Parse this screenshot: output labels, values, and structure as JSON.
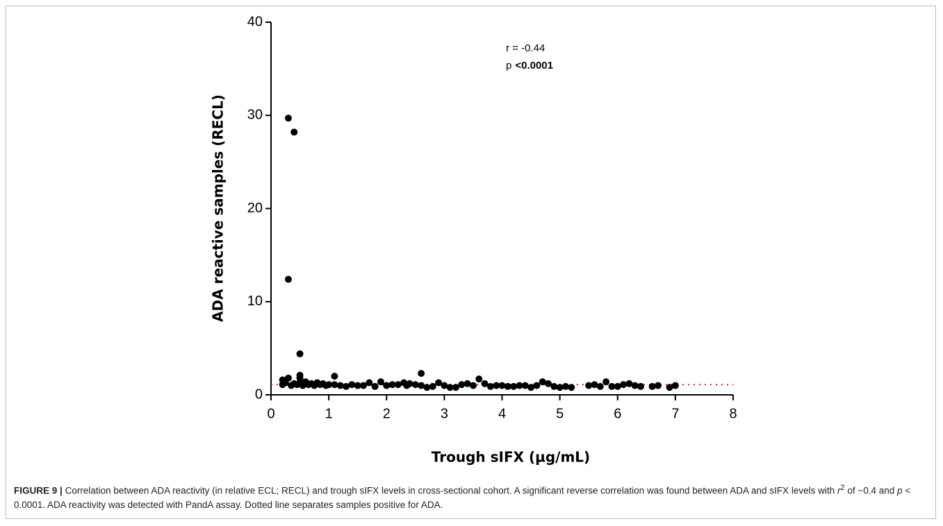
{
  "chart_data": {
    "type": "scatter",
    "x_label": "Trough sIFX (µg/mL)",
    "y_label": "ADA reactive samples (RECL)",
    "annotation_r": "r  = -0.44",
    "annotation_p": "p",
    "annotation_p_value": "<0.0001",
    "xlim": [
      0,
      8
    ],
    "xticks": [
      0,
      1,
      2,
      3,
      4,
      5,
      6,
      7,
      8
    ],
    "ylim": [
      0,
      40
    ],
    "yticks": [
      0,
      10,
      20,
      30,
      40
    ],
    "color": "#000000",
    "threshold": 1.1,
    "threshold_color": "#e02020",
    "x": [
      0.2,
      0.2,
      0.25,
      0.3,
      0.3,
      0.3,
      0.35,
      0.4,
      0.4,
      0.45,
      0.5,
      0.5,
      0.5,
      0.5,
      0.55,
      0.6,
      0.65,
      0.7,
      0.75,
      0.8,
      0.85,
      0.9,
      0.95,
      1.0,
      1.1,
      1.1,
      1.2,
      1.3,
      1.4,
      1.5,
      1.6,
      1.7,
      1.8,
      1.9,
      2.0,
      2.1,
      2.2,
      2.3,
      2.35,
      2.4,
      2.5,
      2.6,
      2.6,
      2.7,
      2.8,
      2.9,
      3.0,
      3.1,
      3.2,
      3.3,
      3.4,
      3.5,
      3.6,
      3.7,
      3.8,
      3.9,
      4.0,
      4.1,
      4.2,
      4.3,
      4.4,
      4.5,
      4.6,
      4.7,
      4.8,
      4.9,
      5.0,
      5.1,
      5.2,
      5.5,
      5.6,
      5.7,
      5.8,
      5.9,
      6.0,
      6.1,
      6.2,
      6.3,
      6.4,
      6.6,
      6.7,
      6.9,
      7.0
    ],
    "values": [
      1.6,
      1.1,
      1.3,
      29.7,
      12.4,
      1.8,
      1.0,
      28.2,
      1.2,
      1.1,
      4.4,
      2.1,
      1.8,
      1.3,
      1.0,
      1.4,
      1.1,
      1.2,
      1.0,
      1.3,
      1.1,
      1.2,
      1.0,
      1.1,
      2.0,
      1.1,
      1.0,
      0.9,
      1.1,
      1.0,
      1.0,
      1.3,
      0.9,
      1.4,
      1.0,
      1.1,
      1.1,
      1.3,
      1.0,
      1.2,
      1.1,
      2.3,
      1.0,
      0.8,
      0.9,
      1.3,
      1.0,
      0.8,
      0.8,
      1.1,
      1.2,
      1.0,
      1.7,
      1.2,
      0.9,
      1.0,
      1.0,
      0.9,
      0.9,
      1.0,
      1.0,
      0.8,
      1.0,
      1.4,
      1.2,
      0.9,
      0.8,
      0.9,
      0.8,
      1.0,
      1.1,
      0.9,
      1.4,
      0.9,
      0.9,
      1.1,
      1.2,
      1.0,
      0.9,
      0.9,
      1.0,
      0.8,
      1.0
    ]
  },
  "caption": {
    "label": "FIGURE 9 |",
    "parts": [
      "Correlation between ADA reactivity (in relative ECL; RECL) and trough sIFX levels in cross-sectional cohort. A significant reverse correlation was found between ADA and sIFX levels with ",
      "r",
      "2",
      " of −0.4 and ",
      "p",
      " < 0.0001. ADA reactivity was detected with PandA assay. Dotted line separates samples positive for ADA."
    ]
  }
}
